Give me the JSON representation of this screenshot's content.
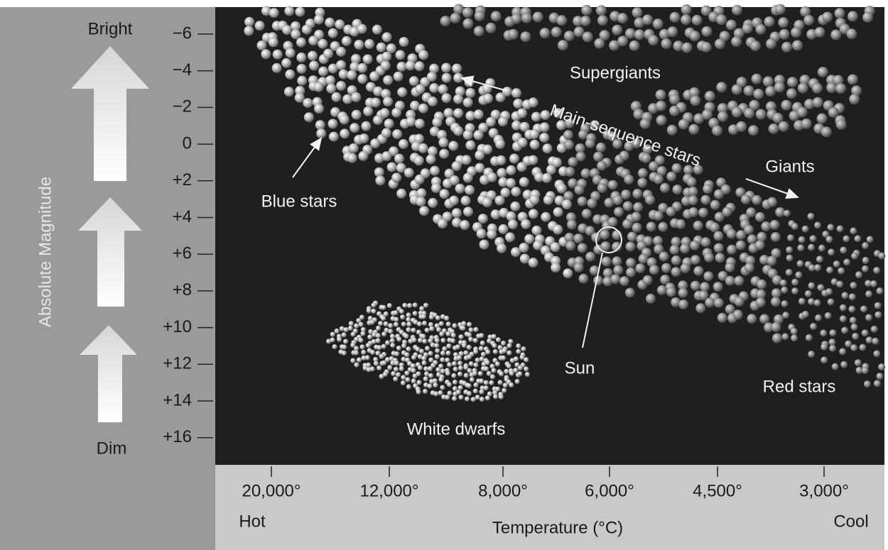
{
  "y_axis": {
    "title": "Absolute Magnitude",
    "top_label": "Bright",
    "bottom_label": "Dim",
    "ticks": [
      "−6",
      "−4",
      "−2",
      "0",
      "+2",
      "+4",
      "+6",
      "+8",
      "+10",
      "+12",
      "+14",
      "+16"
    ]
  },
  "x_axis": {
    "title": "Temperature (°C)",
    "left_label": "Hot",
    "right_label": "Cool",
    "ticks": [
      "20,000°",
      "12,000°",
      "8,000°",
      "6,000°",
      "4,500°",
      "3,000°"
    ]
  },
  "annotations": {
    "supergiants": "Supergiants",
    "main_sequence": "Main-sequence stars",
    "giants": "Giants",
    "blue_stars": "Blue stars",
    "sun": "Sun",
    "red_stars": "Red stars",
    "white_dwarfs": "White dwarfs"
  }
}
